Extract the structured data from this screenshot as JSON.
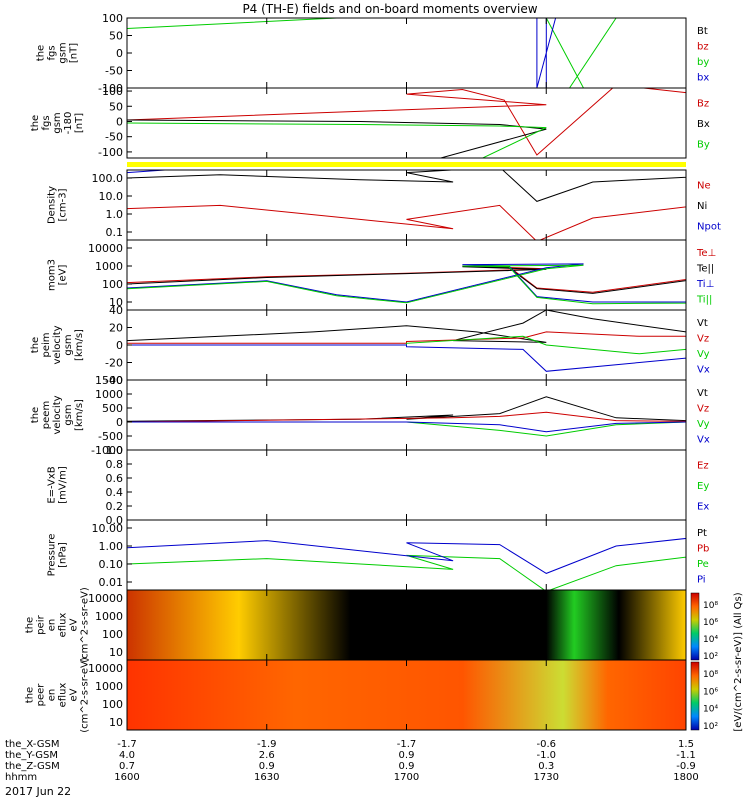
{
  "title": "P4 (TH-E) fields and on-board moments overview",
  "date_label": "2017 Jun 22",
  "colorbar": {
    "label": "[eV/(cm^2-s-sr-eV)] (All Qs)",
    "upper_ticks": [
      "10⁸",
      "10⁶",
      "10⁴",
      "10²"
    ],
    "lower_ticks": [
      "10⁸",
      "10⁶",
      "10⁴",
      "10²"
    ]
  },
  "colors": {
    "black": "#000000",
    "red": "#cc0000",
    "green": "#00cc00",
    "blue": "#0000cc",
    "bar_yellow": "#ffff00"
  },
  "chart_data": [
    {
      "type": "line",
      "ylabel": "the fgs gsm [nT]",
      "yticks": [
        "100",
        "50",
        "0",
        "-50",
        "-100"
      ],
      "ylim": [
        -100,
        100
      ],
      "series": [
        {
          "name": "Bt",
          "color": "#000000",
          "x": [],
          "y": []
        },
        {
          "name": "bz",
          "color": "#cc0000",
          "x": [],
          "y": []
        },
        {
          "name": "by",
          "color": "#00cc00",
          "x": [
            1600,
            1645,
            1690,
            1698,
            1716,
            1735,
            1745
          ],
          "y": [
            70,
            100,
            100,
            -100,
            -100,
            -100,
            100
          ]
        },
        {
          "name": "bx",
          "color": "#0000cc",
          "x": [
            1690,
            1690,
            1692,
            1728,
            1728
          ],
          "y": [
            -100,
            100,
            100,
            -100,
            100
          ]
        }
      ]
    },
    {
      "type": "line",
      "ylabel": "the fgs gsm -180 [nT]",
      "yticks": [
        "100",
        "50",
        "0",
        "-50",
        "-100"
      ],
      "ylim": [
        -120,
        110
      ],
      "series": [
        {
          "name": "Bz",
          "color": "#cc0000",
          "x": [
            1600,
            1640,
            1690,
            1700,
            1712,
            1721,
            1728,
            1745,
            1760,
            1800
          ],
          "y": [
            5,
            28,
            55,
            90,
            105,
            70,
            -110,
            120,
            95,
            40
          ]
        },
        {
          "name": "Bx",
          "color": "#000000",
          "x": [
            1600,
            1650,
            1680,
            1690,
            1705,
            1718,
            1728,
            1760,
            1800
          ],
          "y": [
            5,
            0,
            -10,
            -25,
            -130,
            -130,
            -130,
            -130,
            -120
          ]
        },
        {
          "name": "By",
          "color": "#00cc00",
          "x": [
            1600,
            1650,
            1680,
            1690,
            1715,
            1716,
            1770,
            1800
          ],
          "y": [
            -5,
            -10,
            -15,
            -20,
            -130,
            -130,
            -130,
            -80
          ]
        }
      ]
    },
    {
      "type": "line",
      "ylabel": "Density [cm-3]",
      "log_scale": true,
      "yticks": [
        "100.0",
        "10.0",
        "1.0",
        "0.1"
      ],
      "series": [
        {
          "name": "Ne",
          "color": "#cc0000",
          "x": [
            1600,
            1620,
            1650,
            1670,
            1700,
            1720,
            1728,
            1740,
            1770,
            1800
          ],
          "y": [
            2,
            3,
            0.5,
            0.15,
            0.5,
            3,
            0.03,
            0.6,
            5,
            4
          ]
        },
        {
          "name": "Ni",
          "color": "#000000",
          "x": [
            1600,
            1620,
            1650,
            1670,
            1700,
            1720,
            1728,
            1740,
            1770,
            1800
          ],
          "y": [
            100,
            150,
            80,
            60,
            200,
            400,
            5,
            60,
            150,
            140
          ]
        },
        {
          "name": "Npot",
          "color": "#0000cc",
          "x": [
            1600,
            1610,
            1620
          ],
          "y": [
            200,
            300,
            400
          ]
        }
      ]
    },
    {
      "type": "line",
      "ylabel": "mom3 [eV]",
      "log_scale": true,
      "yticks": [
        "10000",
        "1000",
        "100",
        "10"
      ],
      "series": [
        {
          "name": "Te⊥",
          "color": "#cc0000",
          "x": [
            1600,
            1630,
            1660,
            1690,
            1712,
            1722,
            1728,
            1740,
            1770,
            1800
          ],
          "y": [
            120,
            250,
            400,
            700,
            1000,
            900,
            60,
            35,
            400,
            900
          ]
        },
        {
          "name": "Te||",
          "color": "#000000",
          "x": [
            1600,
            1630,
            1660,
            1690,
            1712,
            1722,
            1728,
            1740,
            1770,
            1800
          ],
          "y": [
            100,
            230,
            380,
            650,
            900,
            800,
            55,
            30,
            350,
            800
          ]
        },
        {
          "name": "Ti⊥",
          "color": "#0000cc",
          "x": [
            1600,
            1630,
            1645,
            1660,
            1690,
            1698,
            1712,
            1722,
            1728,
            1740,
            1770,
            1800
          ],
          "y": [
            60,
            150,
            25,
            10,
            800,
            1300,
            1200,
            1000,
            20,
            10,
            10,
            12
          ]
        },
        {
          "name": "Ti||",
          "color": "#00cc00",
          "x": [
            1600,
            1630,
            1645,
            1660,
            1690,
            1698,
            1712,
            1722,
            1728,
            1740,
            1770,
            1800
          ],
          "y": [
            55,
            140,
            22,
            9,
            700,
            1100,
            1000,
            900,
            18,
            8,
            9,
            10
          ]
        }
      ]
    },
    {
      "type": "line",
      "ylabel": "the peim velocity gsm [km/s]",
      "yticks": [
        "40",
        "20",
        "0",
        "-20",
        "-40"
      ],
      "ylim": [
        -40,
        40
      ],
      "series": [
        {
          "name": "Vt",
          "color": "#000000",
          "x": [
            1600,
            1620,
            1640,
            1660,
            1675,
            1690,
            1710,
            1725,
            1730,
            1740,
            1760,
            1800
          ],
          "y": [
            5,
            10,
            15,
            22,
            15,
            3,
            5,
            25,
            40,
            30,
            15,
            15
          ]
        },
        {
          "name": "Vz",
          "color": "#cc0000",
          "x": [
            1600,
            1660,
            1700,
            1725,
            1730,
            1750,
            1800
          ],
          "y": [
            2,
            2,
            4,
            8,
            15,
            10,
            10
          ]
        },
        {
          "name": "Vy",
          "color": "#00cc00",
          "x": [
            1600,
            1660,
            1700,
            1725,
            1730,
            1750,
            1800
          ],
          "y": [
            0,
            0,
            2,
            10,
            0,
            -10,
            -5
          ]
        },
        {
          "name": "Vx",
          "color": "#0000cc",
          "x": [
            1600,
            1660,
            1700,
            1725,
            1730,
            1750,
            1800
          ],
          "y": [
            0,
            0,
            -2,
            -5,
            -30,
            -20,
            -15
          ]
        }
      ]
    },
    {
      "type": "line",
      "ylabel": "the peem velocity gsm [km/s]",
      "yticks": [
        "1500",
        "1000",
        "500",
        "0",
        "-500",
        "-1000"
      ],
      "ylim": [
        -1000,
        1500
      ],
      "series": [
        {
          "name": "Vt",
          "color": "#000000",
          "x": [
            1600,
            1650,
            1670,
            1700,
            1720,
            1730,
            1745,
            1800
          ],
          "y": [
            30,
            100,
            250,
            100,
            300,
            900,
            150,
            50
          ]
        },
        {
          "name": "Vz",
          "color": "#cc0000",
          "x": [
            1600,
            1670,
            1720,
            1730,
            1745,
            1800
          ],
          "y": [
            0,
            150,
            200,
            350,
            50,
            20
          ]
        },
        {
          "name": "Vy",
          "color": "#00cc00",
          "x": [
            1600,
            1700,
            1720,
            1730,
            1745,
            1800
          ],
          "y": [
            0,
            0,
            -300,
            -500,
            -100,
            0
          ]
        },
        {
          "name": "Vx",
          "color": "#0000cc",
          "x": [
            1600,
            1700,
            1720,
            1730,
            1745,
            1800
          ],
          "y": [
            0,
            0,
            -100,
            -350,
            -50,
            0
          ]
        }
      ]
    },
    {
      "type": "line",
      "ylabel": "E=-VxB [mV/m]",
      "yticks": [
        "1.0",
        "0.8",
        "0.6",
        "0.4",
        "0.2",
        "0.0"
      ],
      "ylim": [
        0,
        1
      ],
      "series": [
        {
          "name": "Ez",
          "color": "#cc0000",
          "x": [],
          "y": []
        },
        {
          "name": "Ey",
          "color": "#00cc00",
          "x": [],
          "y": []
        },
        {
          "name": "Ex",
          "color": "#0000cc",
          "x": [],
          "y": []
        }
      ]
    },
    {
      "type": "line",
      "ylabel": "Pressure [nPa]",
      "log_scale": true,
      "yticks": [
        "10.00",
        "1.00",
        "0.10",
        "0.01"
      ],
      "series": [
        {
          "name": "Pt",
          "color": "#000000",
          "x": [],
          "y": []
        },
        {
          "name": "Pb",
          "color": "#cc0000",
          "x": [],
          "y": []
        },
        {
          "name": "Pe",
          "color": "#00cc00",
          "x": [
            1600,
            1630,
            1670,
            1700,
            1720,
            1730,
            1745,
            1770,
            1800
          ],
          "y": [
            0.1,
            0.2,
            0.05,
            0.3,
            0.2,
            0.003,
            0.08,
            0.5,
            0.3
          ]
        },
        {
          "name": "Pi",
          "color": "#0000cc",
          "x": [
            1600,
            1630,
            1670,
            1700,
            1720,
            1730,
            1745,
            1770,
            1800
          ],
          "y": [
            0.8,
            2,
            0.15,
            1.5,
            1.2,
            0.03,
            1,
            5,
            3
          ]
        }
      ]
    },
    {
      "type": "heatmap",
      "ylabel": "the peir en eflux eV (cm^2-s-sr-eV)",
      "log_scale": true,
      "yticks": [
        "10000",
        "1000",
        "100",
        "10"
      ]
    },
    {
      "type": "heatmap",
      "ylabel": "the peer en eflux eV (cm^2-s-sr-eV)",
      "log_scale": true,
      "yticks": [
        "10000",
        "1000",
        "100",
        "10"
      ]
    }
  ],
  "x_axis": {
    "times": [
      1600,
      1630,
      1700,
      1730,
      1800
    ],
    "rows": [
      {
        "label": "the_X-GSM",
        "values": [
          "-1.7",
          "-1.9",
          "-1.7",
          "-0.6",
          "1.5"
        ]
      },
      {
        "label": "the_Y-GSM",
        "values": [
          "4.0",
          "2.6",
          "0.9",
          "-1.0",
          "-1.1"
        ]
      },
      {
        "label": "the_Z-GSM",
        "values": [
          "0.7",
          "0.9",
          "0.9",
          "0.3",
          "-0.9"
        ]
      },
      {
        "label": "hhmm",
        "values": [
          "1600",
          "1630",
          "1700",
          "1730",
          "1800"
        ]
      }
    ]
  }
}
